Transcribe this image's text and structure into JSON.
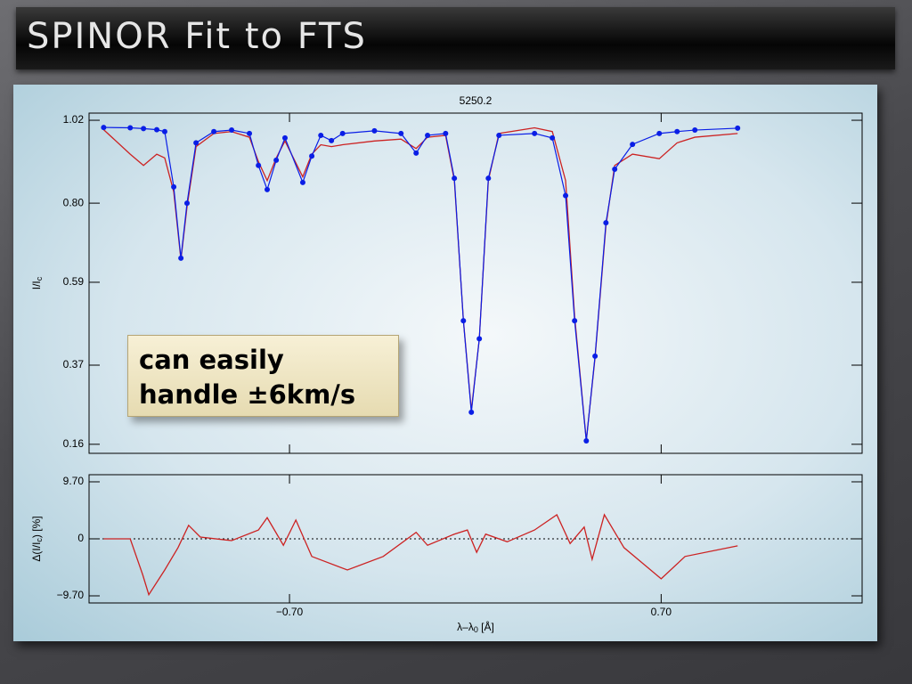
{
  "slide_title": "SPINOR Fit to FTS",
  "annotation": [
    "can easily",
    "handle ±6km/s"
  ],
  "chart_data": [
    {
      "type": "line",
      "title": "5250.2",
      "ylabel_parts": [
        "I/I",
        "c"
      ],
      "x": [
        -1.4,
        -1.3,
        -1.25,
        -1.2,
        -1.17,
        -1.136,
        -1.109,
        -1.086,
        -1.052,
        -0.985,
        -0.918,
        -0.851,
        -0.817,
        -0.784,
        -0.75,
        -0.717,
        -0.65,
        -0.616,
        -0.582,
        -0.542,
        -0.5,
        -0.38,
        -0.28,
        -0.223,
        -0.18,
        -0.112,
        -0.079,
        -0.045,
        -0.015,
        0.015,
        0.049,
        0.089,
        0.223,
        0.29,
        0.34,
        0.374,
        0.418,
        0.451,
        0.492,
        0.525,
        0.592,
        0.693,
        0.76,
        0.827,
        0.988
      ],
      "series": [
        {
          "color": "#cc2222",
          "values": [
            0.995,
            0.93,
            0.9,
            0.93,
            0.92,
            0.83,
            0.65,
            0.79,
            0.95,
            0.985,
            0.99,
            0.975,
            0.91,
            0.86,
            0.92,
            0.965,
            0.87,
            0.93,
            0.955,
            0.95,
            0.955,
            0.965,
            0.97,
            0.945,
            0.975,
            0.98,
            0.86,
            0.49,
            0.25,
            0.44,
            0.86,
            0.985,
            1.0,
            0.99,
            0.86,
            0.5,
            0.17,
            0.39,
            0.74,
            0.9,
            0.93,
            0.918,
            0.96,
            0.975,
            0.985
          ]
        },
        {
          "color": "#0a1ee6",
          "marker": "dot",
          "values": [
            1.001,
            1.0,
            0.998,
            0.995,
            0.99,
            0.843,
            0.654,
            0.8,
            0.96,
            0.99,
            0.994,
            0.985,
            0.9,
            0.836,
            0.914,
            0.973,
            0.855,
            0.925,
            0.98,
            0.966,
            0.985,
            0.992,
            0.985,
            0.933,
            0.98,
            0.985,
            0.866,
            0.488,
            0.245,
            0.44,
            0.866,
            0.98,
            0.985,
            0.973,
            0.82,
            0.488,
            0.169,
            0.394,
            0.748,
            0.89,
            0.956,
            0.985,
            0.99,
            0.994,
            0.999
          ]
        }
      ],
      "xlim": [
        -1.455,
        1.457
      ],
      "ylim": [
        0.136,
        1.039
      ],
      "yticks": [
        {
          "value": 0.16,
          "label": "0.16"
        },
        0.37,
        0.59,
        {
          "value": 0.8,
          "label": "0.80"
        },
        1.02
      ]
    },
    {
      "type": "line",
      "ylabel_parts": [
        "Δ(I/I",
        "c",
        ") [%]"
      ],
      "xlabel_parts": [
        "λ–λ",
        "0",
        " [Å]"
      ],
      "x": [
        -1.4,
        -1.3,
        -1.253,
        -1.23,
        -1.17,
        -1.12,
        -1.08,
        -1.036,
        -0.918,
        -0.817,
        -0.784,
        -0.723,
        -0.676,
        -0.616,
        -0.482,
        -0.347,
        -0.223,
        -0.18,
        -0.079,
        -0.03,
        0.005,
        0.039,
        0.12,
        0.223,
        0.307,
        0.357,
        0.41,
        0.44,
        0.486,
        0.56,
        0.7,
        0.79,
        0.988
      ],
      "series": [
        {
          "color": "#cc2222",
          "values": [
            0,
            0,
            -6.1,
            -9.5,
            -5.3,
            -1.5,
            2.3,
            0.3,
            -0.3,
            1.5,
            3.6,
            -1.1,
            3.2,
            -3.0,
            -5.3,
            -3.0,
            1.1,
            -1.1,
            0.8,
            1.5,
            -2.3,
            0.8,
            -0.5,
            1.5,
            4.1,
            -0.8,
            2.0,
            -3.5,
            4.1,
            -1.5,
            -6.8,
            -3.0,
            -1.2
          ]
        }
      ],
      "reference_line": 0,
      "xlim": [
        -1.455,
        1.457
      ],
      "ylim": [
        -10.91,
        10.91
      ],
      "yticks": [
        {
          "value": -9.7,
          "label": "−9.70"
        },
        0,
        {
          "value": 9.7,
          "label": "9.70"
        }
      ],
      "xticks": [
        {
          "value": -0.7,
          "label": "−0.70"
        },
        {
          "value": 0.7,
          "label": "0.70"
        }
      ]
    }
  ]
}
